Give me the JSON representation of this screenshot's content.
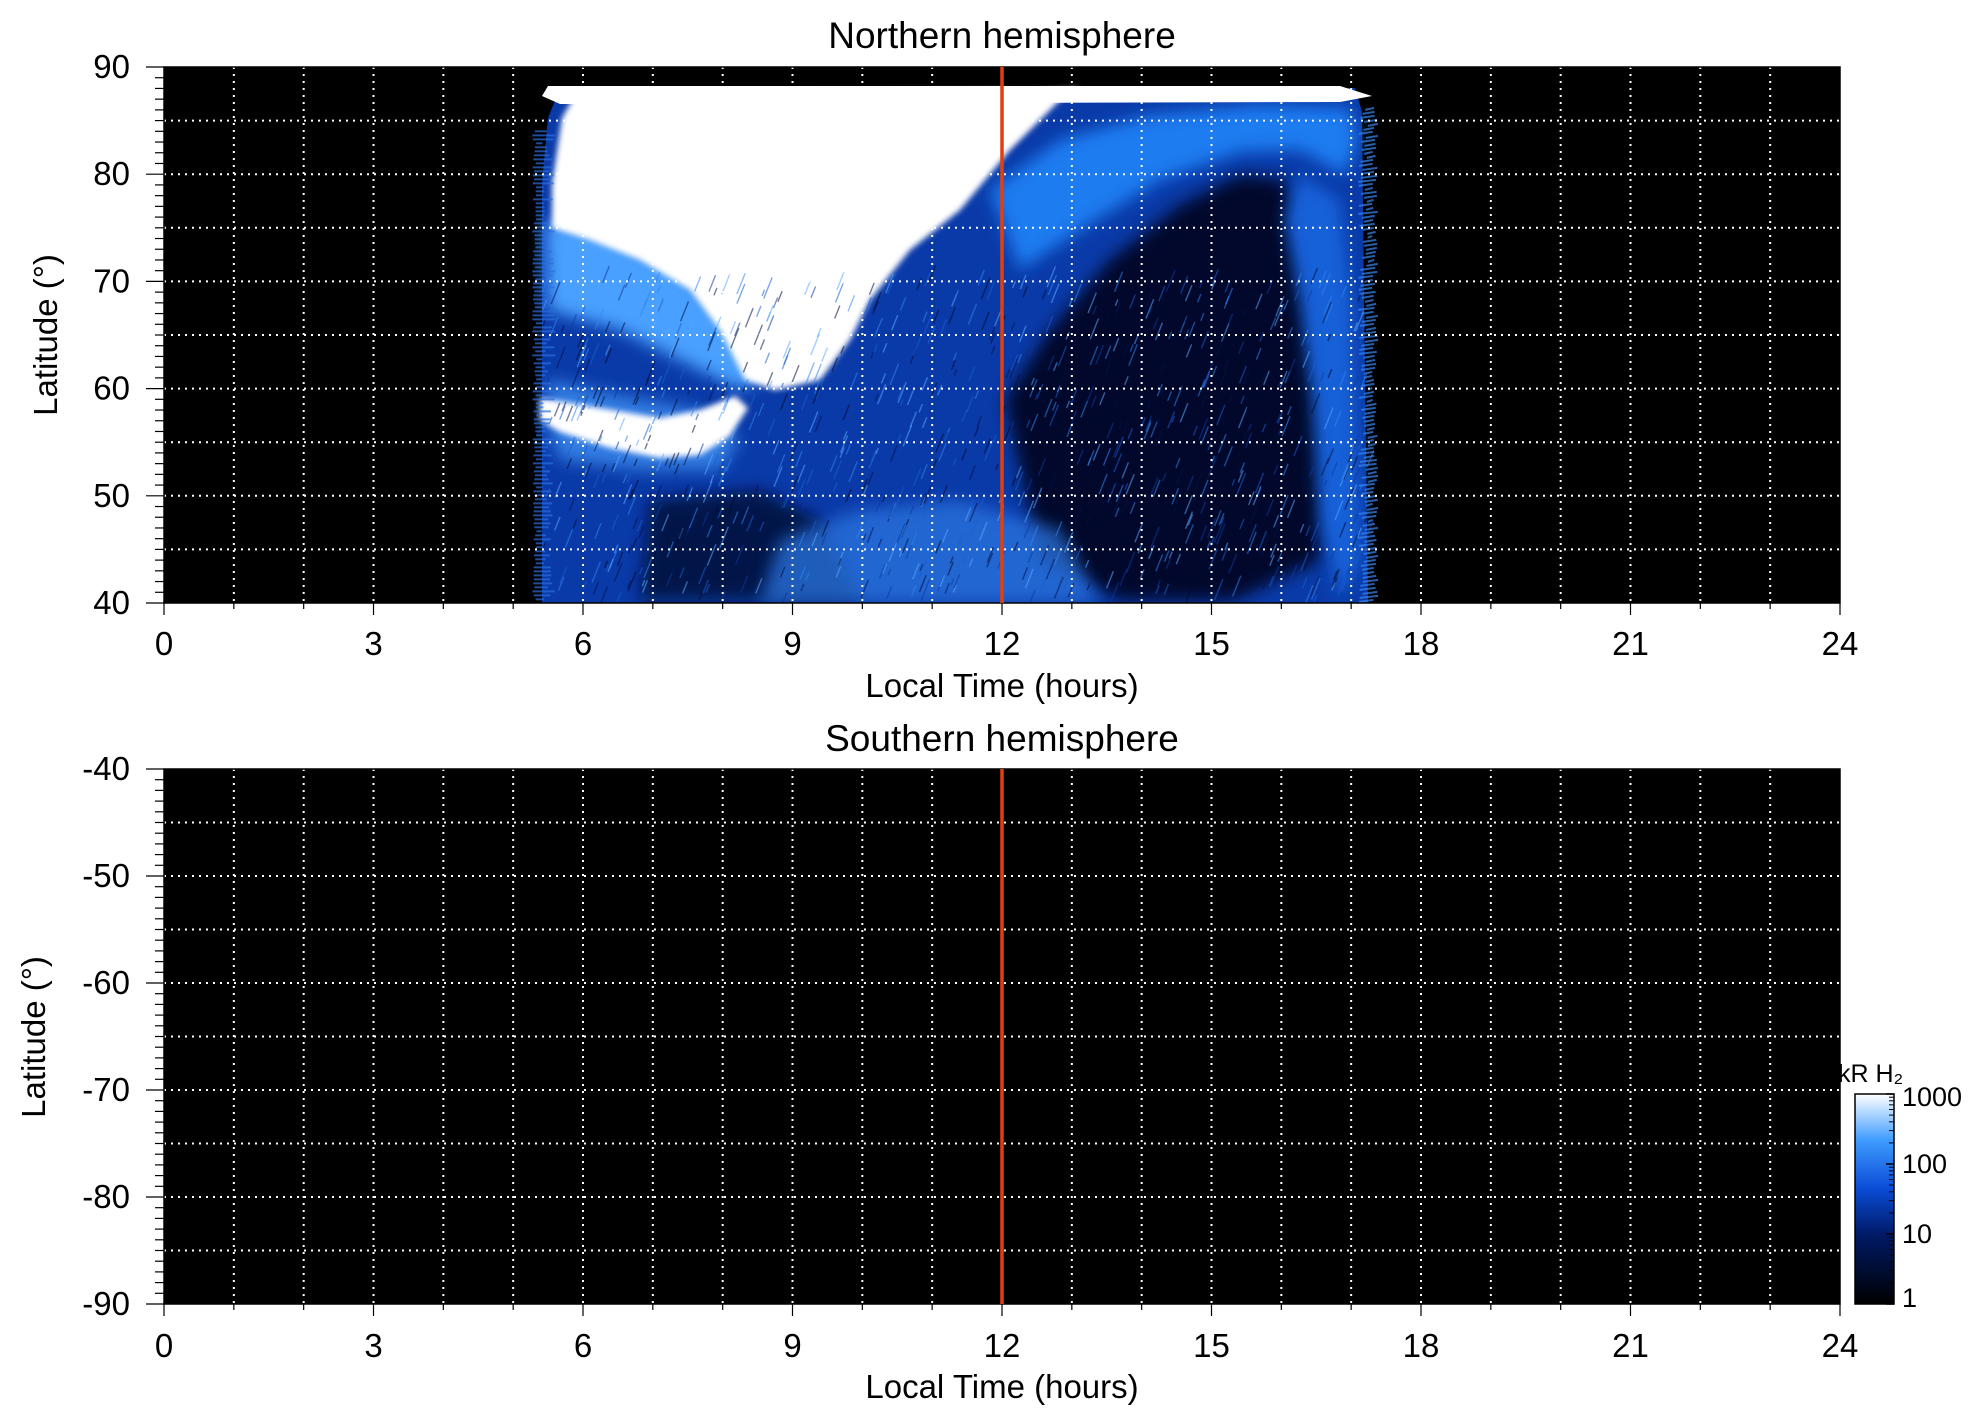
{
  "chart_data": [
    {
      "type": "heatmap",
      "title": "Northern hemisphere",
      "xlabel": "Local Time (hours)",
      "ylabel": "Latitude (°)",
      "xlim": [
        0,
        24
      ],
      "ylim": [
        40,
        90
      ],
      "xticks": [
        "0",
        "3",
        "6",
        "9",
        "12",
        "15",
        "18",
        "21",
        "24"
      ],
      "yticks": [
        "40",
        "50",
        "60",
        "70",
        "80",
        "90"
      ],
      "grid": true,
      "marker_line": {
        "x": 12,
        "color": "#e04010"
      },
      "emission_extent": {
        "lt_start": 5.35,
        "lt_end": 17.3,
        "lat_max": 88.5
      },
      "features": [
        {
          "name": "dawn bright region",
          "lt_range": [
            5.4,
            12.0
          ],
          "lat_range": [
            61,
            88
          ],
          "kR": 1000
        },
        {
          "name": "dawn bright band",
          "lt_range": [
            5.4,
            8.4
          ],
          "lat_range": [
            53,
            58
          ],
          "kR": 1000
        },
        {
          "name": "afternoon arc",
          "lt_range": [
            11.8,
            17.3
          ],
          "lat_range": [
            48,
            87
          ],
          "kR": 100
        },
        {
          "name": "low-latitude background",
          "lt_range": [
            5.4,
            17.3
          ],
          "lat_range": [
            40,
            60
          ],
          "kR": 30
        }
      ]
    },
    {
      "type": "heatmap",
      "title": "Southern hemisphere",
      "xlabel": "Local Time (hours)",
      "ylabel": "Latitude (°)",
      "xlim": [
        0,
        24
      ],
      "ylim": [
        -90,
        -40
      ],
      "xticks": [
        "0",
        "3",
        "6",
        "9",
        "12",
        "15",
        "18",
        "21",
        "24"
      ],
      "yticks": [
        "-40",
        "-50",
        "-60",
        "-70",
        "-80",
        "-90"
      ],
      "grid": true,
      "marker_line": {
        "x": 12,
        "color": "#e04010"
      },
      "features": []
    }
  ],
  "colorbar": {
    "title": "kR H₂",
    "scale": "log",
    "range": [
      1,
      1000
    ],
    "ticks": [
      "1",
      "10",
      "100",
      "1000"
    ],
    "colors": [
      "#000000",
      "#001a66",
      "#0a4cd6",
      "#3f9cff",
      "#ffffff"
    ]
  }
}
